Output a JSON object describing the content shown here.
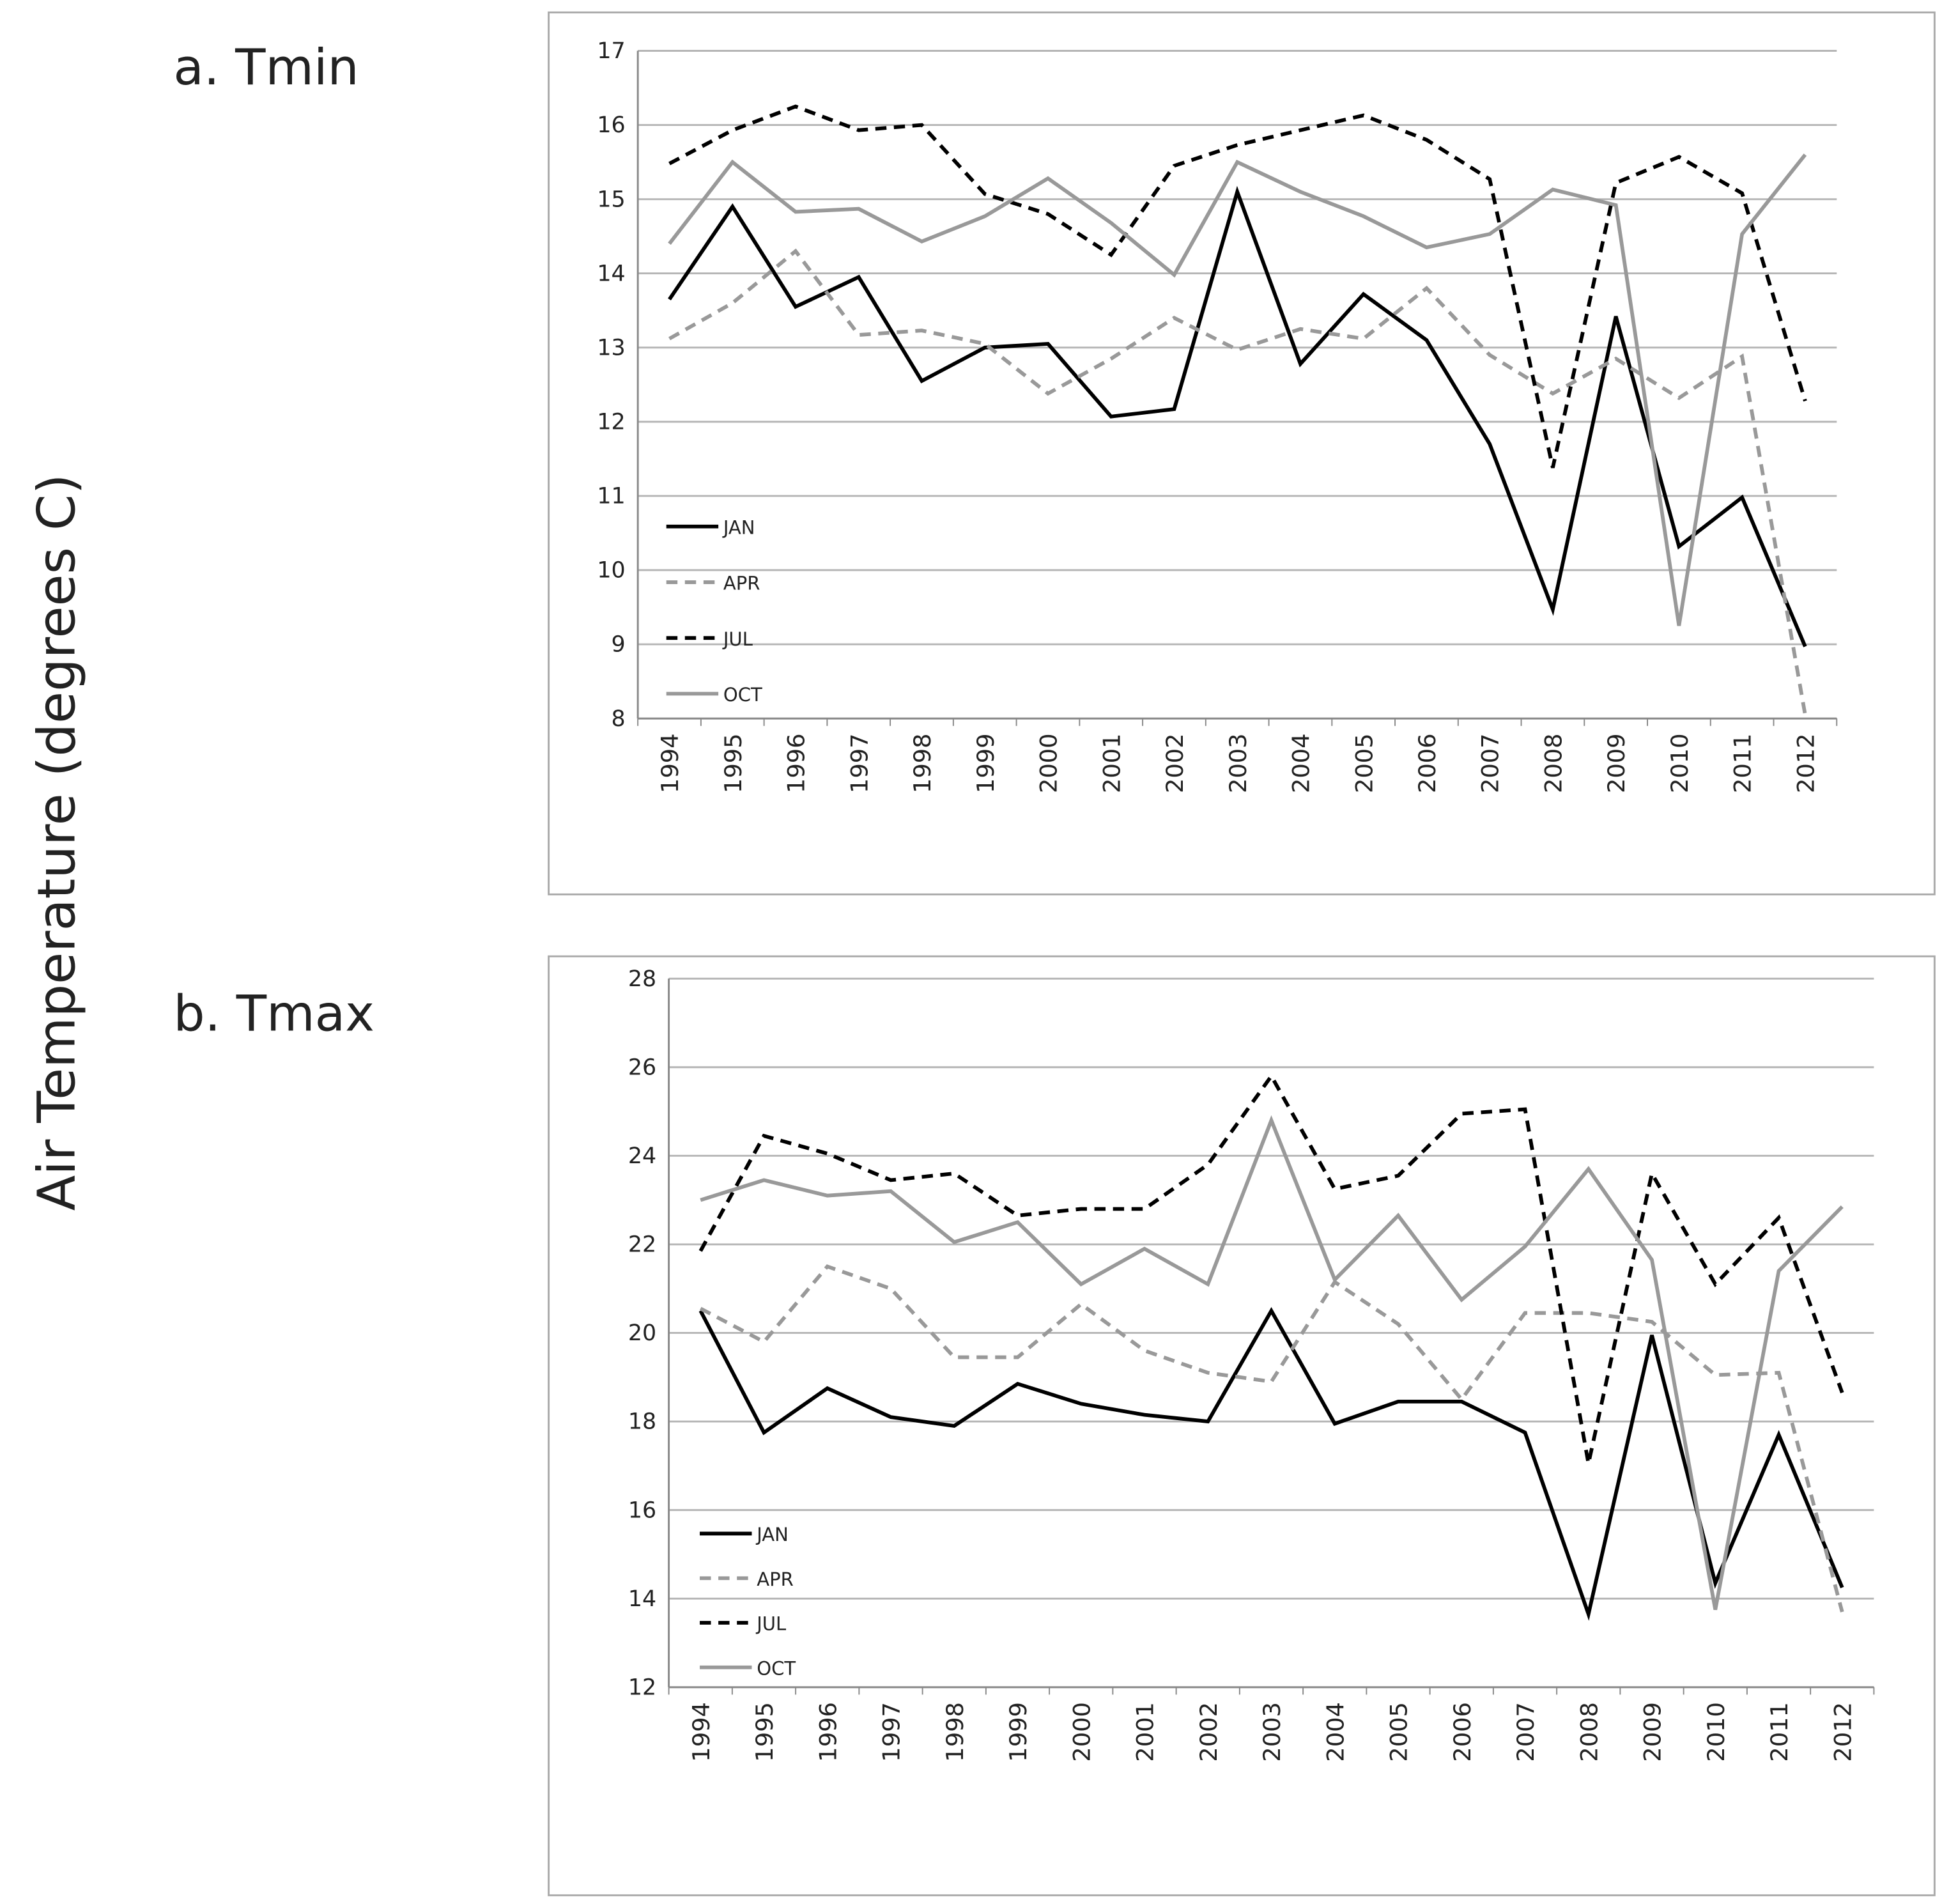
{
  "y_axis_label": "Air Temperature (degrees C)",
  "chart_data": [
    {
      "type": "line",
      "title": "a. Tmin",
      "categories": [
        "1994",
        "1995",
        "1996",
        "1997",
        "1998",
        "1999",
        "2000",
        "2001",
        "2002",
        "2003",
        "2004",
        "2005",
        "2006",
        "2007",
        "2008",
        "2009",
        "2010",
        "2011",
        "2012"
      ],
      "ylim": [
        8,
        17
      ],
      "yticks": [
        8,
        9,
        10,
        11,
        12,
        13,
        14,
        15,
        16,
        17
      ],
      "grid": true,
      "legend": "lower-left",
      "series": [
        {
          "name": "JAN",
          "color": "#000000",
          "dash": "solid",
          "values": [
            13.65,
            14.9,
            13.55,
            13.95,
            12.55,
            13.0,
            13.05,
            12.07,
            12.17,
            15.1,
            12.78,
            13.72,
            13.1,
            11.7,
            9.47,
            13.42,
            10.32,
            10.98,
            8.97
          ]
        },
        {
          "name": "APR",
          "color": "#999999",
          "dash": "dashed",
          "values": [
            13.12,
            13.6,
            14.3,
            13.17,
            13.23,
            13.05,
            12.38,
            12.85,
            13.4,
            12.97,
            13.25,
            13.12,
            13.8,
            12.9,
            12.38,
            12.85,
            12.32,
            12.88,
            8.05
          ]
        },
        {
          "name": "JUL",
          "color": "#000000",
          "dash": "dashed",
          "values": [
            15.48,
            15.93,
            16.25,
            15.93,
            16.0,
            15.07,
            14.8,
            14.25,
            15.45,
            15.73,
            15.93,
            16.13,
            15.8,
            15.27,
            11.38,
            15.22,
            15.57,
            15.08,
            12.28
          ]
        },
        {
          "name": "OCT",
          "color": "#999999",
          "dash": "solid",
          "values": [
            14.4,
            15.5,
            14.83,
            14.87,
            14.43,
            14.77,
            15.28,
            14.68,
            13.98,
            15.5,
            15.1,
            14.77,
            14.35,
            14.53,
            15.13,
            14.92,
            9.25,
            14.53,
            15.6
          ]
        }
      ]
    },
    {
      "type": "line",
      "title": "b. Tmax",
      "categories": [
        "1994",
        "1995",
        "1996",
        "1997",
        "1998",
        "1999",
        "2000",
        "2001",
        "2002",
        "2003",
        "2004",
        "2005",
        "2006",
        "2007",
        "2008",
        "2009",
        "2010",
        "2011",
        "2012"
      ],
      "ylim": [
        12,
        28
      ],
      "yticks": [
        12,
        14,
        16,
        18,
        20,
        22,
        24,
        26,
        28
      ],
      "grid": true,
      "legend": "lower-left",
      "series": [
        {
          "name": "JAN",
          "color": "#000000",
          "dash": "solid",
          "values": [
            20.5,
            17.75,
            18.75,
            18.1,
            17.9,
            18.85,
            18.4,
            18.15,
            18.0,
            20.5,
            17.95,
            18.45,
            18.45,
            17.75,
            13.65,
            19.95,
            14.35,
            17.7,
            14.25
          ]
        },
        {
          "name": "APR",
          "color": "#999999",
          "dash": "dashed",
          "values": [
            20.55,
            19.8,
            21.5,
            21.0,
            19.45,
            19.45,
            20.65,
            19.6,
            19.1,
            18.9,
            21.15,
            20.2,
            18.5,
            20.45,
            20.45,
            20.25,
            19.05,
            19.1,
            13.7
          ]
        },
        {
          "name": "JUL",
          "color": "#000000",
          "dash": "dashed",
          "values": [
            21.85,
            24.45,
            24.05,
            23.45,
            23.6,
            22.65,
            22.8,
            22.8,
            23.8,
            25.8,
            23.25,
            23.55,
            24.95,
            25.05,
            17.05,
            23.6,
            21.1,
            22.6,
            18.65
          ]
        },
        {
          "name": "OCT",
          "color": "#999999",
          "dash": "solid",
          "values": [
            23.0,
            23.45,
            23.1,
            23.2,
            22.05,
            22.5,
            21.1,
            21.9,
            21.1,
            24.8,
            21.2,
            22.65,
            20.75,
            21.95,
            23.7,
            21.65,
            13.75,
            21.4,
            22.85
          ]
        }
      ]
    }
  ]
}
